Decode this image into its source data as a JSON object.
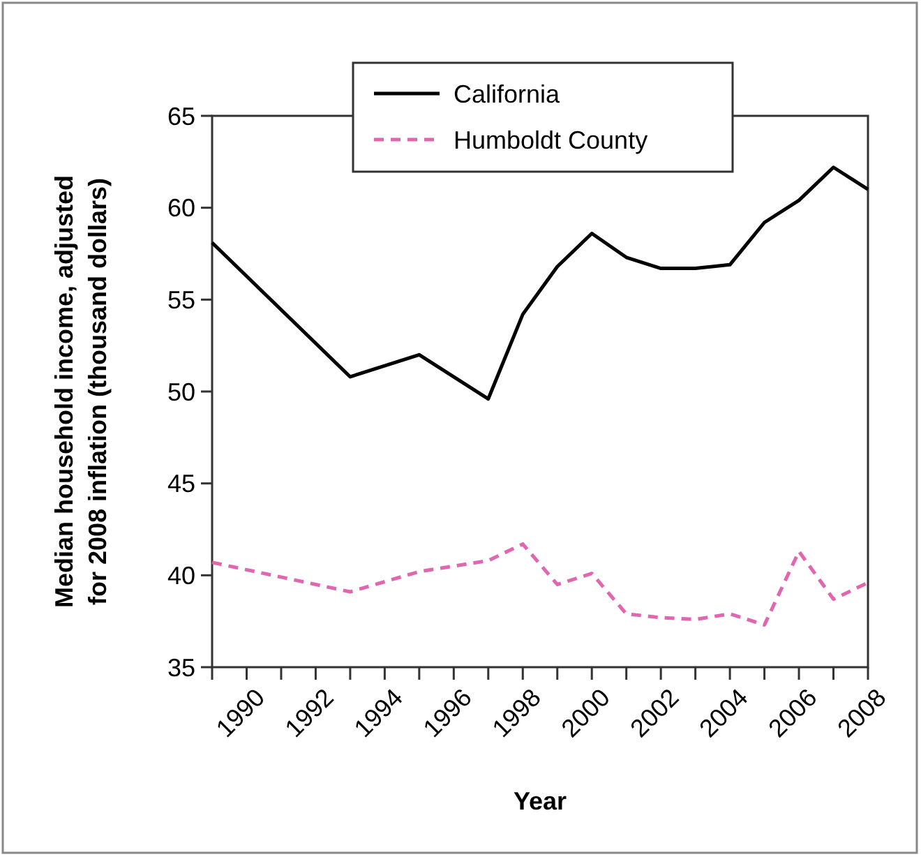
{
  "chart_data": {
    "type": "line",
    "xlabel": "Year",
    "ylabel": "Median household income, adjusted for 2008 inflation (thousand dollars)",
    "xlim": [
      1989,
      2008
    ],
    "xticks": [
      {
        "value": 1989,
        "label": null
      },
      {
        "value": 1990,
        "label": "1990"
      },
      {
        "value": 1991,
        "label": null
      },
      {
        "value": 1992,
        "label": "1992"
      },
      {
        "value": 1993,
        "label": null
      },
      {
        "value": 1994,
        "label": "1994"
      },
      {
        "value": 1995,
        "label": null
      },
      {
        "value": 1996,
        "label": "1996"
      },
      {
        "value": 1997,
        "label": null
      },
      {
        "value": 1998,
        "label": "1998"
      },
      {
        "value": 1999,
        "label": null
      },
      {
        "value": 2000,
        "label": "2000"
      },
      {
        "value": 2001,
        "label": null
      },
      {
        "value": 2002,
        "label": "2002"
      },
      {
        "value": 2003,
        "label": null
      },
      {
        "value": 2004,
        "label": "2004"
      },
      {
        "value": 2005,
        "label": null
      },
      {
        "value": 2006,
        "label": "2006"
      },
      {
        "value": 2007,
        "label": null
      },
      {
        "value": 2008,
        "label": "2008"
      }
    ],
    "ylim": [
      35,
      65
    ],
    "yticks": [
      35,
      40,
      45,
      50,
      55,
      60,
      65
    ],
    "grid": false,
    "legend": "top",
    "marker": "none",
    "series": [
      {
        "name": "California",
        "color": "#000000",
        "line_style": "solid",
        "x": [
          1989,
          1993,
          1995,
          1997,
          1998,
          1999,
          2000,
          2001,
          2002,
          2003,
          2004,
          2005,
          2006,
          2007,
          2008
        ],
        "values": [
          58.1,
          50.8,
          52.0,
          49.6,
          54.2,
          56.8,
          58.6,
          57.3,
          56.7,
          56.7,
          56.9,
          59.2,
          60.4,
          62.2,
          61.0
        ]
      },
      {
        "name": "Humboldt County",
        "color": "#e066b0",
        "line_style": "dashed",
        "x": [
          1989,
          1993,
          1995,
          1996,
          1997,
          1998,
          1999,
          2000,
          2001,
          2002,
          2003,
          2004,
          2005,
          2006,
          2007,
          2008
        ],
        "values": [
          40.7,
          39.1,
          40.2,
          40.5,
          40.8,
          41.7,
          39.5,
          40.1,
          37.9,
          37.7,
          37.6,
          37.9,
          37.3,
          41.3,
          38.7,
          39.6
        ]
      }
    ]
  }
}
